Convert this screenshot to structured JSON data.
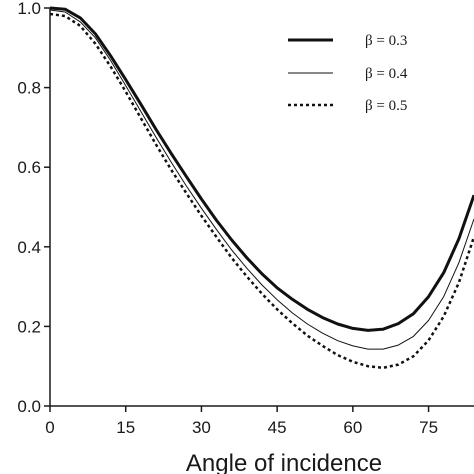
{
  "chart_data": {
    "type": "line",
    "title": "",
    "xlabel": "Angle of incidence",
    "ylabel": "",
    "xlim": [
      0,
      84
    ],
    "ylim": [
      0,
      1.0
    ],
    "x_ticks": [
      0,
      15,
      30,
      45,
      60,
      75
    ],
    "x_tick_labels": [
      "0",
      "15",
      "30",
      "45",
      "60",
      "75"
    ],
    "y_ticks": [
      0,
      0.2,
      0.4,
      0.6,
      0.8,
      1.0
    ],
    "y_tick_labels": [
      "0.0",
      "0.2",
      "0.4",
      "0.6",
      "0.8",
      "1.0"
    ],
    "grid": false,
    "legend_position": "top-right",
    "x": [
      0,
      3,
      6,
      9,
      12,
      15,
      18,
      21,
      24,
      27,
      30,
      33,
      36,
      39,
      42,
      45,
      48,
      51,
      54,
      57,
      60,
      63,
      66,
      69,
      72,
      75,
      78,
      81,
      84
    ],
    "series": [
      {
        "name": "β = 0.3",
        "style": "thick-solid",
        "values": [
          1.0,
          0.997,
          0.975,
          0.935,
          0.88,
          0.82,
          0.758,
          0.695,
          0.635,
          0.577,
          0.52,
          0.466,
          0.417,
          0.372,
          0.332,
          0.297,
          0.268,
          0.243,
          0.222,
          0.206,
          0.195,
          0.19,
          0.193,
          0.207,
          0.232,
          0.275,
          0.335,
          0.42,
          0.53
        ]
      },
      {
        "name": "β = 0.4",
        "style": "thin-solid",
        "values": [
          0.995,
          0.99,
          0.965,
          0.925,
          0.868,
          0.805,
          0.74,
          0.675,
          0.613,
          0.553,
          0.497,
          0.443,
          0.392,
          0.346,
          0.304,
          0.267,
          0.234,
          0.206,
          0.183,
          0.164,
          0.151,
          0.143,
          0.143,
          0.153,
          0.175,
          0.215,
          0.275,
          0.36,
          0.47
        ]
      },
      {
        "name": "β = 0.5",
        "style": "dotted",
        "values": [
          0.985,
          0.98,
          0.955,
          0.91,
          0.853,
          0.79,
          0.723,
          0.657,
          0.594,
          0.535,
          0.478,
          0.424,
          0.372,
          0.325,
          0.282,
          0.243,
          0.208,
          0.177,
          0.151,
          0.128,
          0.111,
          0.1,
          0.096,
          0.104,
          0.125,
          0.165,
          0.225,
          0.31,
          0.425
        ]
      }
    ]
  }
}
